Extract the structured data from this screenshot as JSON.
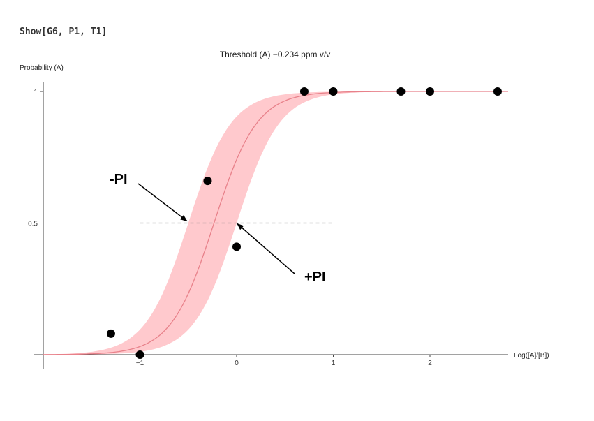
{
  "code_input": "Show[G6, P1, T1]",
  "chart_data": {
    "type": "scatter",
    "title": "Threshold (A) −0.234 ppm v/v",
    "xlabel": "Log([A]/[B])",
    "ylabel": "Probability (A)",
    "xlim": [
      -1,
      2.7
    ],
    "ylim": [
      0,
      1
    ],
    "x_ticks": [
      -1,
      0,
      1,
      2
    ],
    "x_tick_labels": [
      "−1",
      "0",
      "1",
      "2"
    ],
    "y_ticks": [
      0.5,
      1
    ],
    "y_tick_labels": [
      "0.5",
      "1"
    ],
    "grid": false,
    "series": [
      {
        "type": "scatter",
        "points": [
          {
            "x": -1.3,
            "y": 0.08
          },
          {
            "x": -1.0,
            "y": 0.0
          },
          {
            "x": -0.3,
            "y": 0.66
          },
          {
            "x": 0.0,
            "y": 0.41
          },
          {
            "x": 0.7,
            "y": 1.0
          },
          {
            "x": 1.0,
            "y": 1.0
          },
          {
            "x": 1.7,
            "y": 1.0
          },
          {
            "x": 2.0,
            "y": 1.0
          },
          {
            "x": 2.7,
            "y": 1.0
          }
        ],
        "color": "#000000"
      },
      {
        "type": "logistic-fit",
        "midpoint": -0.234,
        "slope": 4.5,
        "band_lower_midpoint": -0.5,
        "band_upper_midpoint": 0.0,
        "line_color": "#e8818a",
        "band_color": "#ffc9cd"
      }
    ],
    "reference_line": {
      "y": 0.5,
      "x_from": -1.0,
      "x_to": 1.0,
      "style": "dashed",
      "color": "#888888"
    },
    "annotations": [
      {
        "label": "-PI",
        "point": {
          "x": -0.5,
          "y": 0.5
        }
      },
      {
        "label": "+PI",
        "point": {
          "x": 0.0,
          "y": 0.5
        }
      }
    ]
  }
}
